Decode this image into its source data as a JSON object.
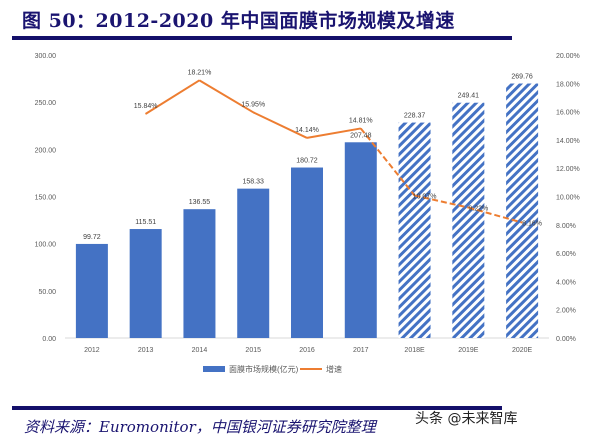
{
  "title": "图 50：2012-2020 年中国面膜市场规模及增速",
  "source": "资料来源：Euromonitor，中国银河证券研究院整理",
  "watermark": "头条 @未来智库",
  "colors": {
    "bar": "#4472c4",
    "line": "#ed7d31",
    "rule": "#140f6a"
  },
  "chart_data": {
    "type": "bar+line",
    "categories": [
      "2012",
      "2013",
      "2014",
      "2015",
      "2016",
      "2017",
      "2018E",
      "2019E",
      "2020E"
    ],
    "forecast_categories": [
      "2018E",
      "2019E",
      "2020E"
    ],
    "series": [
      {
        "name": "面膜市场规模(亿元)",
        "type": "bar",
        "axis": "left",
        "values": [
          99.72,
          115.51,
          136.55,
          158.33,
          180.72,
          207.48,
          228.37,
          249.41,
          269.76
        ],
        "labels": [
          "99.72",
          "115.51",
          "136.55",
          "158.33",
          "180.72",
          "207.48",
          "228.37",
          "249.41",
          "269.76"
        ]
      },
      {
        "name": "增速",
        "type": "line",
        "axis": "right",
        "values": [
          null,
          15.84,
          18.21,
          15.95,
          14.14,
          14.81,
          10.07,
          9.22,
          8.16
        ],
        "labels": [
          "",
          "15.84%",
          "18.21%",
          "15.95%",
          "14.14%",
          "14.81%",
          "10.07%",
          "9.22%",
          "8.16%"
        ]
      }
    ],
    "left_axis": {
      "ylim": [
        0,
        300
      ],
      "ticks": [
        "0.00",
        "50.00",
        "100.00",
        "150.00",
        "200.00",
        "250.00",
        "300.00"
      ]
    },
    "right_axis": {
      "ylim": [
        0,
        20
      ],
      "ticks": [
        "0.00%",
        "2.00%",
        "4.00%",
        "6.00%",
        "8.00%",
        "10.00%",
        "12.00%",
        "14.00%",
        "16.00%",
        "18.00%",
        "20.00%"
      ]
    },
    "grid": false,
    "legend": "bottom"
  }
}
